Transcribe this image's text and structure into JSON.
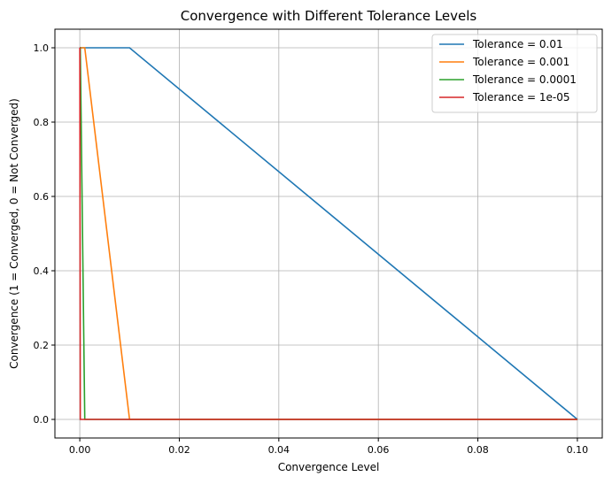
{
  "chart_data": {
    "type": "line",
    "title": "Convergence with Different Tolerance Levels",
    "xlabel": "Convergence Level",
    "ylabel": "Convergence (1 = Converged, 0 = Not Converged)",
    "xlim": [
      -0.005,
      0.105
    ],
    "ylim": [
      -0.05,
      1.05
    ],
    "xticks": [
      0.0,
      0.02,
      0.04,
      0.06,
      0.08,
      0.1
    ],
    "xtick_labels": [
      "0.00",
      "0.02",
      "0.04",
      "0.06",
      "0.08",
      "0.10"
    ],
    "yticks": [
      0.0,
      0.2,
      0.4,
      0.6,
      0.8,
      1.0
    ],
    "ytick_labels": [
      "0.0",
      "0.2",
      "0.4",
      "0.6",
      "0.8",
      "1.0"
    ],
    "grid": true,
    "legend_position": "top-right",
    "x": [
      0.1,
      0.01,
      0.001,
      0.0001,
      1e-05,
      1e-06,
      1e-07
    ],
    "series": [
      {
        "name": "Tolerance = 0.01",
        "color": "#1f77b4",
        "values": [
          0,
          1,
          1,
          1,
          1,
          1,
          1
        ]
      },
      {
        "name": "Tolerance = 0.001",
        "color": "#ff7f0e",
        "values": [
          0,
          0,
          1,
          1,
          1,
          1,
          1
        ]
      },
      {
        "name": "Tolerance = 0.0001",
        "color": "#2ca02c",
        "values": [
          0,
          0,
          0,
          1,
          1,
          1,
          1
        ]
      },
      {
        "name": "Tolerance = 1e-05",
        "color": "#d62728",
        "values": [
          0,
          0,
          0,
          0,
          1,
          1,
          1
        ]
      }
    ]
  }
}
